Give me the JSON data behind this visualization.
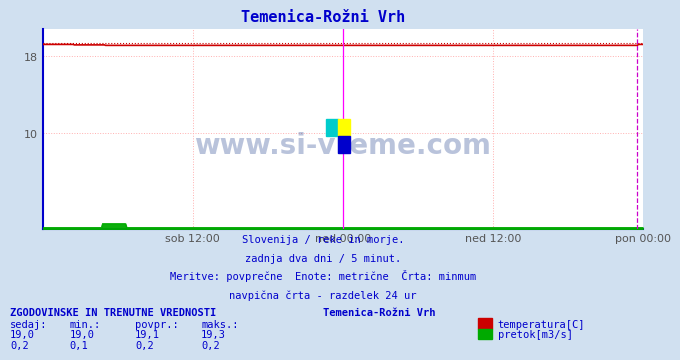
{
  "title": "Temenica-Rožni Vrh",
  "title_color": "#0000cc",
  "bg_color": "#d0e0f0",
  "plot_bg_color": "#ffffff",
  "grid_color": "#ffb0b0",
  "grid_style": ":",
  "x_tick_labels": [
    "sob 12:00",
    "ned 00:00",
    "ned 12:00",
    "pon 00:00"
  ],
  "x_tick_positions": [
    0.25,
    0.5,
    0.75,
    1.0
  ],
  "ylim": [
    0,
    20.8
  ],
  "yticks": [
    10,
    18
  ],
  "temp_value": 19.1,
  "temp_dotted_value": 19.3,
  "temp_color": "#cc0000",
  "flow_color": "#00aa00",
  "axis_line_color": "#0000cc",
  "navpicna_color_mid": "#ff00ff",
  "navpicna_color_end": "#cc00cc",
  "watermark_color": "#1a3a8a",
  "subtitle1": "Slovenija / reke in morje.",
  "subtitle2": "zadnja dva dni / 5 minut.",
  "subtitle3": "Meritve: povprečne  Enote: metrične  Črta: minmum",
  "subtitle4": "navpična črta - razdelek 24 ur",
  "table_title": "ZGODOVINSKE IN TRENUTNE VREDNOSTI",
  "col_headers": [
    "sedaj:",
    "min.:",
    "povpr.:",
    "maks.:"
  ],
  "row1": [
    "19,0",
    "19,0",
    "19,1",
    "19,3"
  ],
  "row2": [
    "0,2",
    "0,1",
    "0,2",
    "0,2"
  ],
  "legend_title": "Temenica-Rožni Vrh",
  "legend_temp": "temperatura[C]",
  "legend_flow": "pretok[m3/s]",
  "temp_color_box": "#cc0000",
  "flow_color_box": "#00aa00",
  "text_color": "#0000cc",
  "n_points": 576
}
